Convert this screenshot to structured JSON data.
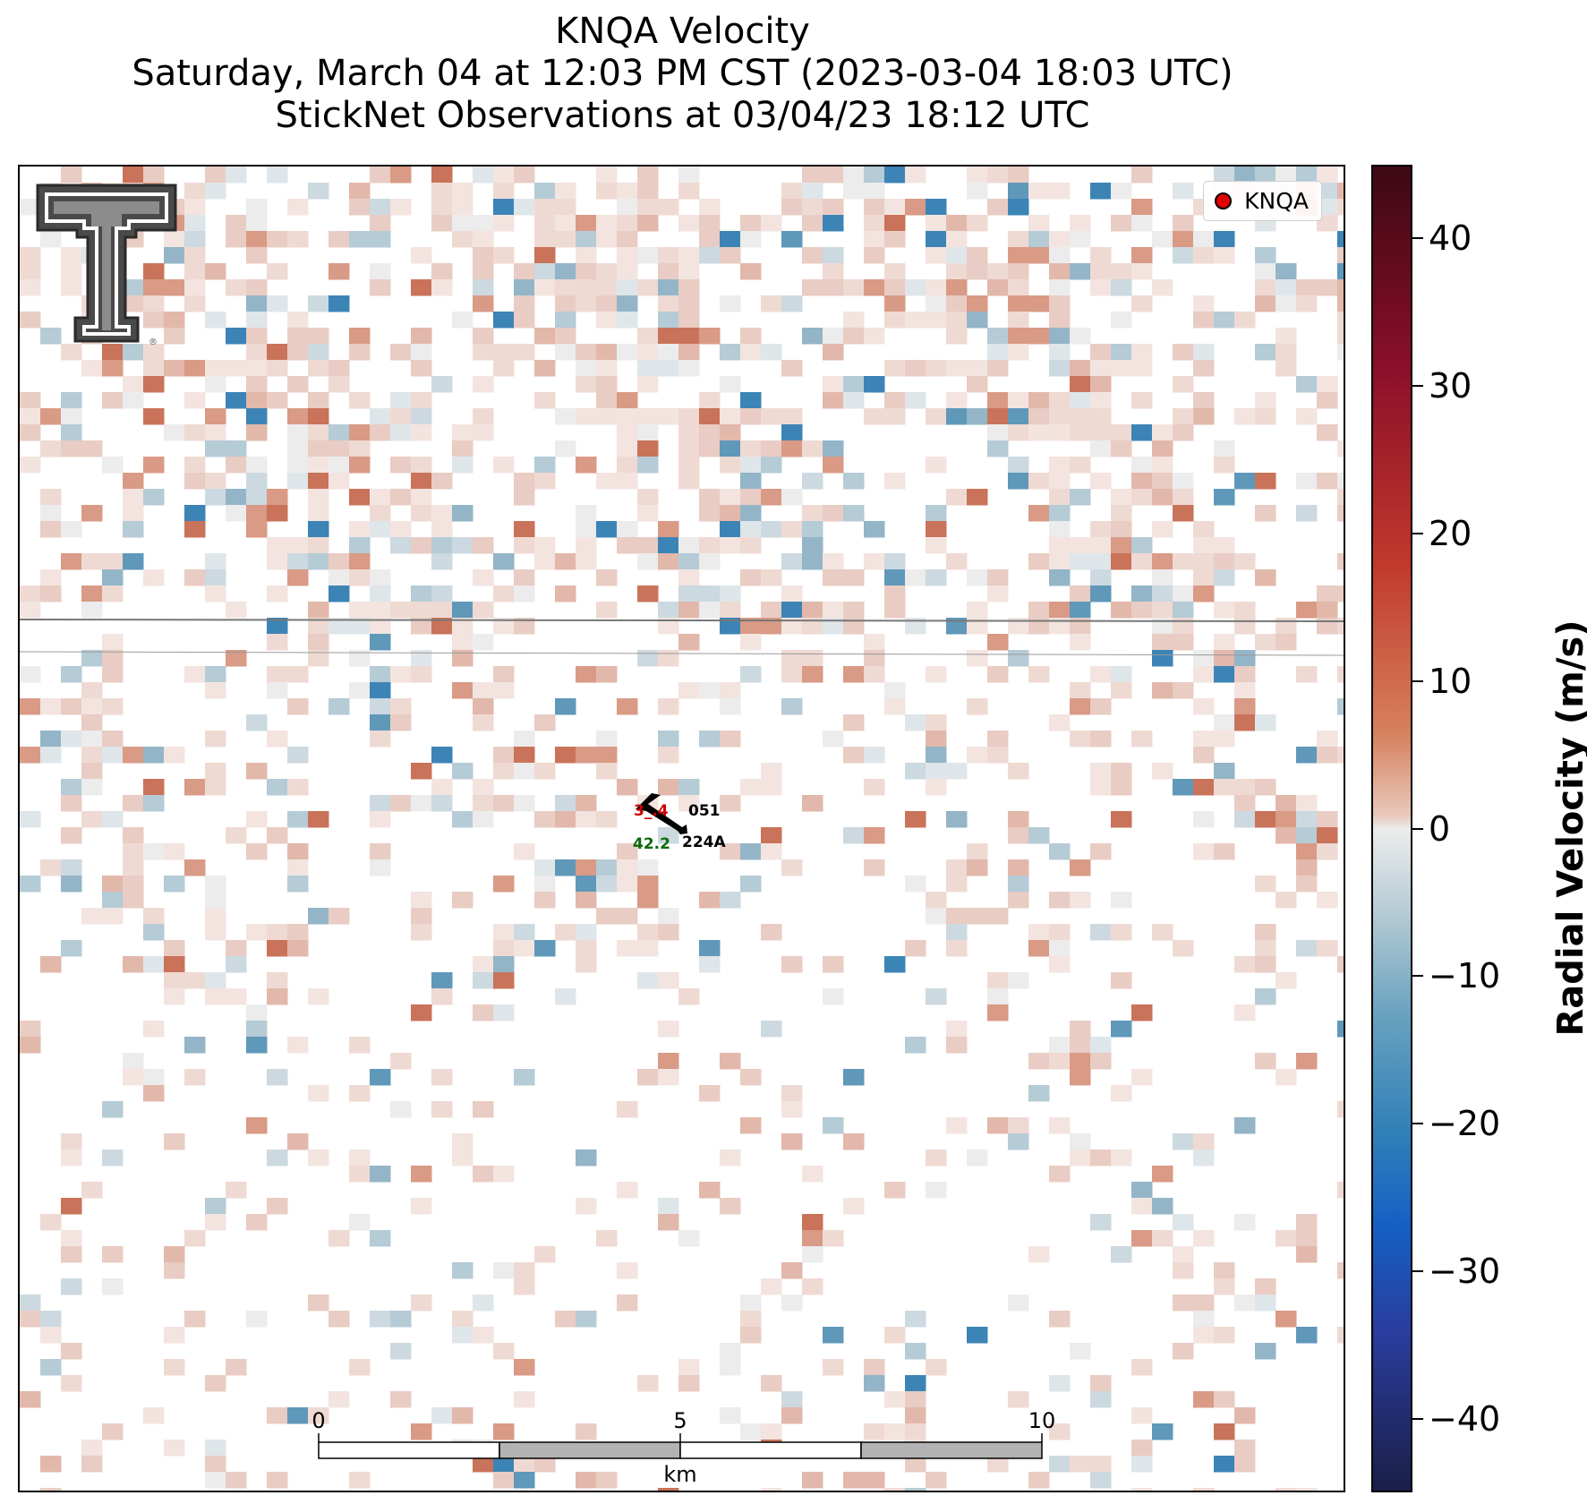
{
  "title": {
    "line1": "KNQA Velocity",
    "line2": "Saturday, March 04 at 12:03 PM CST (2023-03-04 18:03 UTC)",
    "line3": "StickNet Observations at 03/04/23 18:12 UTC"
  },
  "legend": {
    "label": "KNQA",
    "marker_color": "#e00000"
  },
  "colorbar": {
    "label": "Radial Velocity (m/s)",
    "ticks": [
      "40",
      "30",
      "20",
      "10",
      "0",
      "−10",
      "−20",
      "−30",
      "−40"
    ],
    "range": [
      -45,
      45
    ]
  },
  "scalebar": {
    "labels": [
      "0",
      "5",
      "10"
    ],
    "unit": "km"
  },
  "stations": [
    {
      "id": "051",
      "temperature": "3_.4",
      "temperature_color": "#cc0000"
    },
    {
      "id": "224A",
      "dewpoint": "42.2",
      "dewpoint_color": "#0a6b0a"
    }
  ],
  "colors": {
    "strong_positive": "#c0392b",
    "weak_positive": "#e6c6bd",
    "zero": "#ececec",
    "weak_negative": "#b7ccd6",
    "strong_negative": "#2f80b8"
  }
}
